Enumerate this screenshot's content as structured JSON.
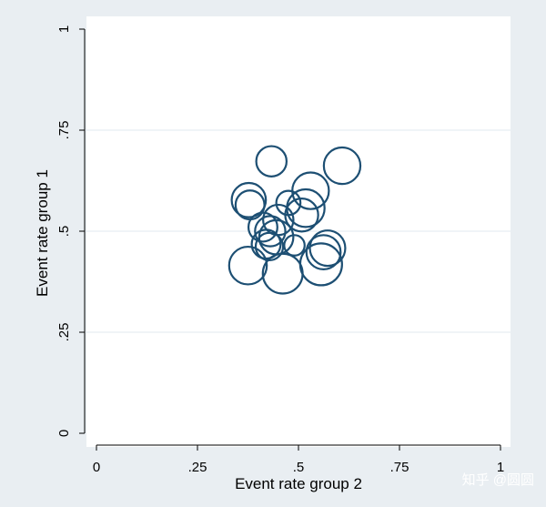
{
  "chart_data": {
    "type": "scatter",
    "marker": "hollow-circle-weighted",
    "xlabel": "Event rate group 2",
    "ylabel": "Event rate group 1",
    "xlim": [
      0,
      1
    ],
    "ylim": [
      0,
      1
    ],
    "xticks": [
      0,
      0.25,
      0.5,
      0.75,
      1
    ],
    "xtick_labels": [
      "0",
      ".25",
      ".5",
      ".75",
      "1"
    ],
    "yticks": [
      0,
      0.25,
      0.5,
      0.75,
      1
    ],
    "ytick_labels": [
      "0",
      ".25",
      ".5",
      ".75",
      "1"
    ],
    "grid": "horizontal",
    "colors": {
      "plot_background": "#ffffff",
      "outer_background": "#e9eef2",
      "gridline": "#e6eef2",
      "marker": "#1d4f73"
    },
    "points": [
      {
        "x": 0.433,
        "y": 0.673,
        "weight": 11
      },
      {
        "x": 0.608,
        "y": 0.662,
        "weight": 16
      },
      {
        "x": 0.53,
        "y": 0.6,
        "weight": 16
      },
      {
        "x": 0.377,
        "y": 0.577,
        "weight": 14
      },
      {
        "x": 0.38,
        "y": 0.565,
        "weight": 10
      },
      {
        "x": 0.475,
        "y": 0.57,
        "weight": 7
      },
      {
        "x": 0.518,
        "y": 0.557,
        "weight": 17
      },
      {
        "x": 0.508,
        "y": 0.54,
        "weight": 13
      },
      {
        "x": 0.45,
        "y": 0.528,
        "weight": 11
      },
      {
        "x": 0.412,
        "y": 0.51,
        "weight": 10
      },
      {
        "x": 0.43,
        "y": 0.5,
        "weight": 11
      },
      {
        "x": 0.445,
        "y": 0.485,
        "weight": 14
      },
      {
        "x": 0.42,
        "y": 0.468,
        "weight": 10
      },
      {
        "x": 0.428,
        "y": 0.462,
        "weight": 9
      },
      {
        "x": 0.49,
        "y": 0.465,
        "weight": 5
      },
      {
        "x": 0.572,
        "y": 0.458,
        "weight": 15
      },
      {
        "x": 0.562,
        "y": 0.448,
        "weight": 14
      },
      {
        "x": 0.375,
        "y": 0.415,
        "weight": 17
      },
      {
        "x": 0.556,
        "y": 0.418,
        "weight": 21
      },
      {
        "x": 0.461,
        "y": 0.395,
        "weight": 19
      }
    ]
  },
  "watermark": "知乎 @圆圆"
}
